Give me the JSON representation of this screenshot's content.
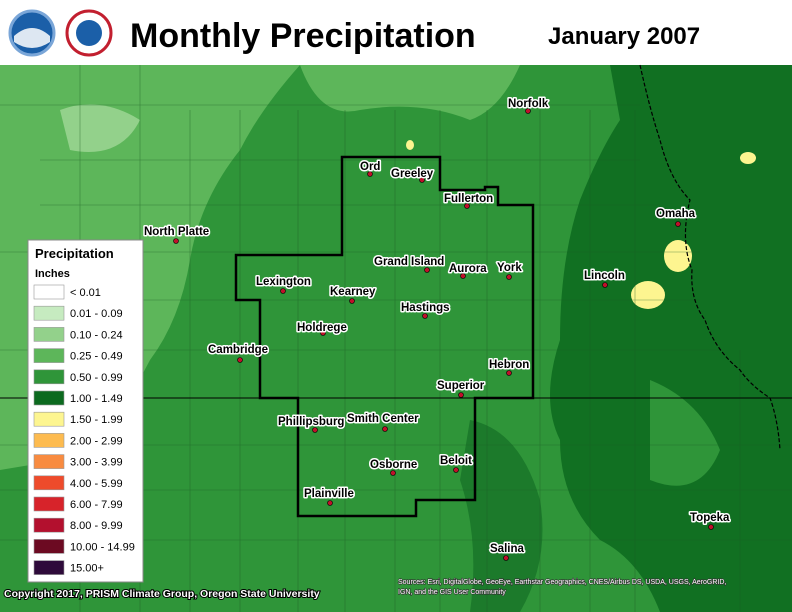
{
  "header": {
    "title": "Monthly Precipitation",
    "period": "January 2007"
  },
  "legend": {
    "title": "Precipitation",
    "unit": "Inches",
    "items": [
      {
        "label": "< 0.01",
        "color": "#ffffff"
      },
      {
        "label": "0.01 - 0.09",
        "color": "#c6ebc0"
      },
      {
        "label": "0.10 - 0.24",
        "color": "#93d18b"
      },
      {
        "label": "0.25 - 0.49",
        "color": "#5db65a"
      },
      {
        "label": "0.50 - 0.99",
        "color": "#2f9539"
      },
      {
        "label": "1.00 - 1.49",
        "color": "#0c6a1f"
      },
      {
        "label": "1.50 - 1.99",
        "color": "#fdf590"
      },
      {
        "label": "2.00 - 2.99",
        "color": "#fdbb4f"
      },
      {
        "label": "3.00 - 3.99",
        "color": "#f88b40"
      },
      {
        "label": "4.00 - 5.99",
        "color": "#ee4b2b"
      },
      {
        "label": "6.00 - 7.99",
        "color": "#d7232a"
      },
      {
        "label": "8.00 - 9.99",
        "color": "#b3102e"
      },
      {
        "label": "10.00 - 14.99",
        "color": "#6c0a22"
      },
      {
        "label": "15.00+",
        "color": "#2e0a3a"
      }
    ]
  },
  "cities": [
    "Norfolk",
    "Ord",
    "Greeley",
    "Fullerton",
    "North Platte",
    "Omaha",
    "Grand Island",
    "Aurora",
    "York",
    "Lincoln",
    "Lexington",
    "Kearney",
    "Hastings",
    "Holdrege",
    "Cambridge",
    "Hebron",
    "Superior",
    "Phillipsburg",
    "Smith Center",
    "Beloit",
    "Osborne",
    "Plainville",
    "Salina",
    "Topeka"
  ],
  "credits": {
    "copyright": "Copyright 2017, PRISM Climate Group, Oregon State University",
    "sources": [
      "Sources: Esri, DigitalGlobe, GeoEye, Earthstar Geographics, CNES/Airbus DS, USDA, USGS, AeroGRID,",
      "IGN, and the GIS User Community"
    ]
  }
}
